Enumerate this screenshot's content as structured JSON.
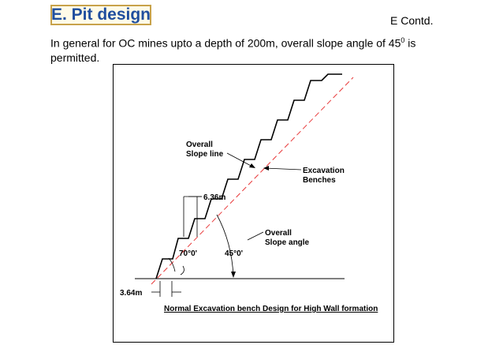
{
  "slide": {
    "title": "E. Pit design",
    "contd_label": "E Contd.",
    "intro_text": "In general for OC mines upto a depth of 200m, overall slope angle of 45",
    "intro_sup": "0",
    "intro_tail": " is permitted."
  },
  "figure": {
    "label_overall_slope_line_1": "Overall",
    "label_overall_slope_line_2": "Slope line",
    "label_excavation_1": "Excavation",
    "label_excavation_2": "Benches",
    "label_bench_width": "6.36m",
    "label_overall_angle_1": "Overall",
    "label_overall_angle_2": "Slope angle",
    "label_bench_angle": "70°0'",
    "label_slope_angle": "45°0'",
    "label_bench_height": "3.64m",
    "caption": "Normal Excavation bench Design for High Wall formation",
    "colors": {
      "slope_line": "#e8393a",
      "bench_line": "#000000",
      "title_text": "#1f4e9e",
      "title_border": "#c8a24a"
    }
  }
}
